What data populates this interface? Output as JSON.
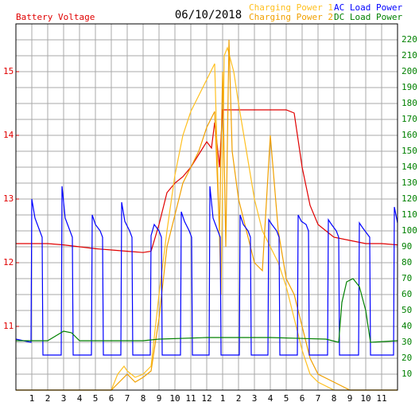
{
  "chart_data": {
    "type": "line",
    "date": "06/10/2018",
    "xlim": [
      0,
      24
    ],
    "xticks": [
      1,
      2,
      3,
      4,
      5,
      6,
      7,
      8,
      9,
      10,
      11,
      12,
      {
        "value": 13,
        "label": "1"
      },
      {
        "value": 14,
        "label": "2"
      },
      {
        "value": 15,
        "label": "3"
      },
      {
        "value": 16,
        "label": "4"
      },
      {
        "value": 17,
        "label": "5"
      },
      {
        "value": 18,
        "label": "6"
      },
      {
        "value": 19,
        "label": "7"
      },
      {
        "value": 20,
        "label": "8"
      },
      {
        "value": 21,
        "label": "9"
      },
      {
        "value": 22,
        "label": "10"
      },
      {
        "value": 23,
        "label": "11"
      }
    ],
    "ylim": [
      10,
      15.75
    ],
    "yticks": [
      11,
      12,
      13,
      14,
      15
    ],
    "y2lim": [
      0,
      230
    ],
    "y2ticks": [
      10,
      20,
      30,
      40,
      50,
      60,
      70,
      80,
      90,
      100,
      110,
      120,
      130,
      140,
      150,
      160,
      170,
      180,
      190,
      200,
      210,
      220
    ],
    "grid": true,
    "series": [
      {
        "name": "Battery Voltage",
        "color": "#e00000",
        "axis": "y",
        "x": [
          0,
          1,
          2,
          3,
          4,
          5,
          6,
          7,
          8,
          8.5,
          9,
          9.5,
          10,
          10.5,
          11,
          11.5,
          12,
          12.3,
          12.5,
          12.6,
          12.8,
          13,
          13.2,
          14,
          15,
          16,
          17,
          17.5,
          18,
          18.5,
          19,
          19.5,
          20,
          21,
          22,
          23,
          24
        ],
        "values": [
          12.3,
          12.3,
          12.3,
          12.28,
          12.25,
          12.22,
          12.2,
          12.18,
          12.16,
          12.18,
          12.6,
          13.1,
          13.25,
          13.35,
          13.5,
          13.7,
          13.9,
          13.8,
          14.2,
          14.0,
          13.5,
          14.4,
          14.4,
          14.4,
          14.4,
          14.4,
          14.4,
          14.35,
          13.5,
          12.9,
          12.6,
          12.5,
          12.4,
          12.35,
          12.3,
          12.3,
          12.28
        ]
      },
      {
        "name": "Charging Power 1",
        "color": "#ffc020",
        "axis": "y2",
        "x": [
          0,
          6,
          6.4,
          6.8,
          7,
          7.5,
          8,
          8.5,
          9,
          9.5,
          10,
          10.5,
          11,
          11.5,
          12,
          12.5,
          12.9,
          13.1,
          13.3,
          13.7,
          14,
          14.5,
          15,
          15.5,
          16,
          16.5,
          17,
          17.5,
          18,
          18.5,
          19,
          20,
          24
        ],
        "values": [
          0,
          0,
          10,
          15,
          12,
          8,
          10,
          15,
          60,
          100,
          135,
          160,
          175,
          185,
          195,
          205,
          60,
          210,
          215,
          200,
          180,
          150,
          120,
          100,
          90,
          80,
          65,
          45,
          25,
          10,
          5,
          0,
          0
        ]
      },
      {
        "name": "Charging Power 2",
        "color": "#f0a000",
        "axis": "y2",
        "x": [
          0,
          6,
          6.5,
          7,
          7.5,
          8,
          8.5,
          9,
          9.5,
          10,
          10.5,
          11,
          11.5,
          12,
          12.5,
          12.8,
          13,
          13.2,
          13.4,
          13.6,
          14,
          14.5,
          15,
          15.5,
          16,
          16.5,
          17,
          17.5,
          18,
          18.5,
          19,
          20,
          21,
          24
        ],
        "values": [
          0,
          0,
          5,
          10,
          5,
          8,
          12,
          45,
          90,
          110,
          130,
          140,
          150,
          165,
          175,
          100,
          200,
          90,
          220,
          150,
          120,
          100,
          80,
          75,
          160,
          100,
          70,
          60,
          40,
          20,
          10,
          5,
          0,
          0
        ]
      },
      {
        "name": "AC Load Power",
        "color": "#0000ff",
        "axis": "y2",
        "x": [
          0,
          0.95,
          1.0,
          1.2,
          1.5,
          1.65,
          1.7,
          2.85,
          2.9,
          3.1,
          3.4,
          3.55,
          3.6,
          4.75,
          4.8,
          5.0,
          5.3,
          5.45,
          5.5,
          6.6,
          6.65,
          6.85,
          7.15,
          7.3,
          7.35,
          8.45,
          8.5,
          8.7,
          9.0,
          9.15,
          9.2,
          10.35,
          10.4,
          10.6,
          10.9,
          11.05,
          11.1,
          12.15,
          12.2,
          12.4,
          12.7,
          12.85,
          12.9,
          14.05,
          14.1,
          14.3,
          14.6,
          14.75,
          14.8,
          15.85,
          15.9,
          16.1,
          16.4,
          16.55,
          16.6,
          17.7,
          17.75,
          17.95,
          18.25,
          18.4,
          18.45,
          19.6,
          19.65,
          19.85,
          20.15,
          20.3,
          20.35,
          21.55,
          21.6,
          21.8,
          22.1,
          22.25,
          22.3,
          23.75,
          23.8,
          24
        ],
        "values": [
          32,
          30,
          120,
          108,
          100,
          96,
          22,
          22,
          128,
          108,
          100,
          96,
          22,
          22,
          110,
          104,
          100,
          96,
          22,
          22,
          118,
          106,
          100,
          96,
          22,
          22,
          97,
          104,
          100,
          96,
          22,
          22,
          112,
          106,
          100,
          96,
          22,
          22,
          128,
          108,
          100,
          96,
          22,
          22,
          110,
          104,
          100,
          96,
          22,
          22,
          107,
          104,
          100,
          96,
          22,
          22,
          110,
          106,
          104,
          100,
          22,
          22,
          107,
          104,
          100,
          96,
          22,
          22,
          105,
          102,
          98,
          96,
          22,
          22,
          115,
          105
        ]
      },
      {
        "name": "DC Load Power",
        "color": "#008000",
        "axis": "y2",
        "x": [
          0,
          2,
          3,
          3.5,
          4,
          8,
          9,
          12,
          16,
          19.5,
          20.3,
          20.5,
          20.8,
          21.2,
          21.6,
          22,
          22.3,
          24
        ],
        "values": [
          31,
          31,
          37,
          36,
          31,
          31,
          32,
          33,
          33,
          32,
          30,
          55,
          68,
          70,
          65,
          50,
          30,
          31
        ]
      }
    ]
  }
}
